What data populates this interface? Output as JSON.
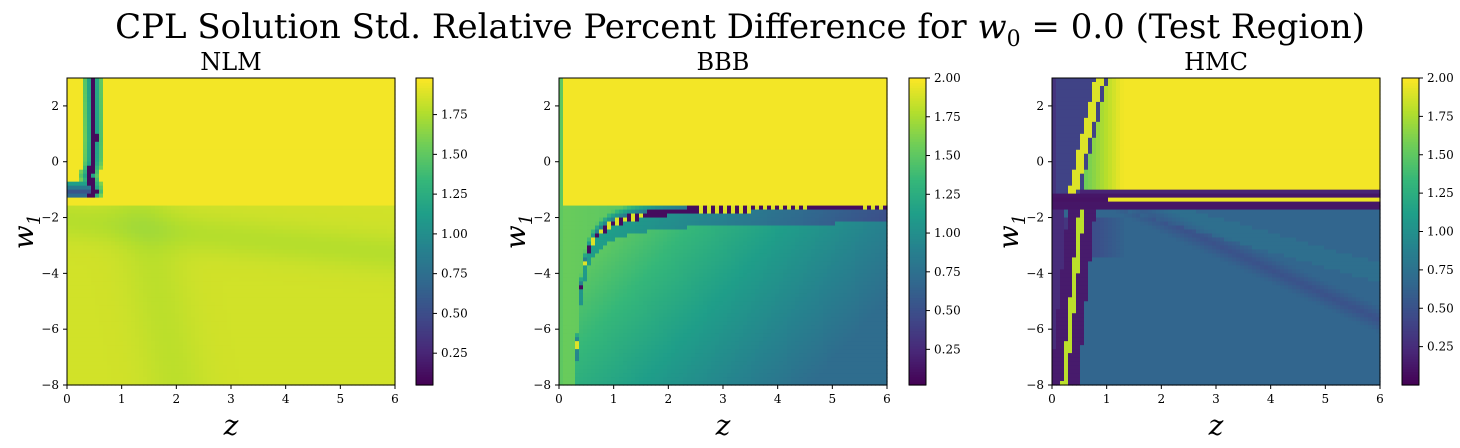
{
  "figure": {
    "title_prefix": "CPL Solution Std. Relative Percent Difference for ",
    "title_math": "w",
    "title_sub": "0",
    "title_suffix": " = 0.0 (Test Region)"
  },
  "colormap": "viridis",
  "chart_data": [
    {
      "type": "heatmap",
      "title": "NLM",
      "xlabel": "z",
      "ylabel": "w",
      "ylabel_sub": "1",
      "xlim": [
        0,
        6
      ],
      "ylim": [
        -8,
        3
      ],
      "xticks": [
        0,
        1,
        2,
        3,
        4,
        5,
        6
      ],
      "yticks": [
        -8,
        -6,
        -4,
        -2,
        0,
        2
      ],
      "colorbar": {
        "min": 0.05,
        "max": 1.98,
        "ticks": [
          0.25,
          0.5,
          0.75,
          1.0,
          1.25,
          1.5,
          1.75
        ]
      },
      "features": {
        "upper_value": 1.95,
        "lower_value": 1.85,
        "notch_curve_z": [
          0.47,
          0.48,
          0.49,
          0.48,
          0.4,
          0.45,
          0.5,
          0.42,
          0.3
        ],
        "notch_curve_w1": [
          3,
          2,
          0.8,
          0,
          -0.5,
          -0.8,
          -1.1,
          -1.3,
          -1.2
        ]
      }
    },
    {
      "type": "heatmap",
      "title": "BBB",
      "xlabel": "z",
      "ylabel": "w",
      "ylabel_sub": "1",
      "xlim": [
        0,
        6
      ],
      "ylim": [
        -8,
        3
      ],
      "xticks": [
        0,
        1,
        2,
        3,
        4,
        5,
        6
      ],
      "yticks": [
        -8,
        -6,
        -4,
        -2,
        0,
        2
      ],
      "colorbar": {
        "min": 0.02,
        "max": 2.0,
        "ticks": [
          0.25,
          0.5,
          0.75,
          1.0,
          1.25,
          1.5,
          1.75,
          2.0
        ]
      },
      "features": {
        "upper_value": 1.97,
        "boundary_w1": -1.55,
        "notch_curve": "w1 = -1.5 - 0.55/(z - 0.22)",
        "lower_min_value": 0.72,
        "lower_max_value": 1.6
      }
    },
    {
      "type": "heatmap",
      "title": "HMC",
      "xlabel": "z",
      "ylabel": "w",
      "ylabel_sub": "1",
      "xlim": [
        0,
        6
      ],
      "ylim": [
        -8,
        3
      ],
      "xticks": [
        0,
        1,
        2,
        3,
        4,
        5,
        6
      ],
      "yticks": [
        -8,
        -6,
        -4,
        -2,
        0,
        2
      ],
      "colorbar": {
        "min": 0.0,
        "max": 2.0,
        "ticks": [
          0.25,
          0.5,
          0.75,
          1.0,
          1.25,
          1.5,
          1.75,
          2.0
        ]
      },
      "features": {
        "upper_value": 1.97,
        "boundary_w1": -1.35,
        "lower_value": 0.65,
        "bright_line_w1": -1.35
      }
    }
  ]
}
